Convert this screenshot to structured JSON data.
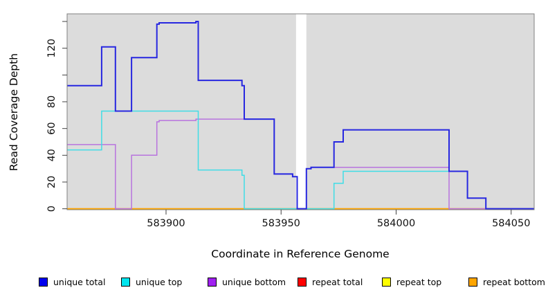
{
  "chart_data": {
    "type": "line",
    "subtype": "step-coverage",
    "title": "",
    "xlabel": "Coordinate in Reference Genome",
    "ylabel": "Read Coverage Depth",
    "xlim": [
      583857,
      584060
    ],
    "ylim": [
      -0.7,
      145.7
    ],
    "x_ticks": [
      583900,
      583950,
      584000,
      584050
    ],
    "x_tick_labels": [
      "583900",
      "583950",
      "584000",
      "584050"
    ],
    "y_ticks": [
      0,
      20,
      40,
      60,
      80,
      100,
      120,
      140
    ],
    "y_tick_labels": [
      "0",
      "20",
      "40",
      "60",
      "80",
      "",
      "120",
      ""
    ],
    "plot_bg": "#DCDCDC",
    "plot_border": "#7F7F7F",
    "gap_region": {
      "x0": 583956.5,
      "x1": 583961.0,
      "color": "#FFFFFF"
    },
    "series": [
      {
        "name": "repeat total",
        "color": "#EE0000",
        "width": 1.5,
        "points": [
          [
            583857,
            0
          ],
          [
            584060,
            0
          ]
        ]
      },
      {
        "name": "repeat top",
        "color": "#FFFF00",
        "width": 1.5,
        "points": [
          [
            583857,
            0
          ],
          [
            584060,
            0
          ]
        ]
      },
      {
        "name": "repeat bottom",
        "color": "#FFA500",
        "width": 1.5,
        "points": [
          [
            583857,
            0
          ],
          [
            584060,
            0
          ]
        ]
      },
      {
        "name": "unique bottom",
        "color": "#B873DE",
        "width": 1.5,
        "points": [
          [
            583857,
            48
          ],
          [
            583878,
            0
          ],
          [
            583885,
            40
          ],
          [
            583896,
            65
          ],
          [
            583897,
            66
          ],
          [
            583913,
            67
          ],
          [
            583947,
            26
          ],
          [
            583955,
            24
          ],
          [
            583957,
            0
          ],
          [
            583961,
            30
          ],
          [
            583963,
            31
          ],
          [
            584023,
            0
          ],
          [
            584060,
            0
          ]
        ]
      },
      {
        "name": "unique top",
        "color": "#3FDDE6",
        "width": 1.5,
        "points": [
          [
            583857,
            44
          ],
          [
            583872,
            73
          ],
          [
            583914,
            29
          ],
          [
            583933,
            25
          ],
          [
            583934,
            0
          ],
          [
            583973,
            19
          ],
          [
            583977,
            28
          ],
          [
            584031,
            8
          ],
          [
            584039,
            0
          ],
          [
            584060,
            0
          ]
        ]
      },
      {
        "name": "unique total",
        "color": "#2727E0",
        "width": 2,
        "points": [
          [
            583857,
            92
          ],
          [
            583872,
            121
          ],
          [
            583878,
            73
          ],
          [
            583885,
            113
          ],
          [
            583896,
            138
          ],
          [
            583897,
            139
          ],
          [
            583913,
            140
          ],
          [
            583914,
            96
          ],
          [
            583933,
            92
          ],
          [
            583934,
            67
          ],
          [
            583947,
            26
          ],
          [
            583955,
            24
          ],
          [
            583957,
            0
          ],
          [
            583961,
            30
          ],
          [
            583963,
            31
          ],
          [
            583973,
            50
          ],
          [
            583977,
            59
          ],
          [
            584023,
            28
          ],
          [
            584031,
            8
          ],
          [
            584039,
            0
          ],
          [
            584060,
            0
          ]
        ]
      }
    ],
    "legend": [
      {
        "label": "unique total",
        "color": "#0000EE"
      },
      {
        "label": "unique top",
        "color": "#00E5EE"
      },
      {
        "label": "unique bottom",
        "color": "#A020F0"
      },
      {
        "label": "repeat total",
        "color": "#FF0000"
      },
      {
        "label": "repeat top",
        "color": "#FFFF00"
      },
      {
        "label": "repeat bottom",
        "color": "#FFA500"
      }
    ]
  }
}
